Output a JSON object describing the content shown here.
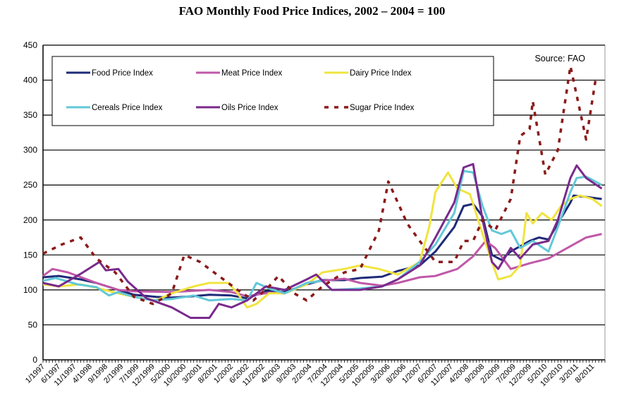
{
  "chart_data": {
    "type": "line",
    "title": "FAO Monthly Food Price Indices, 2002 – 2004 = 100",
    "annotation": "Source: FAO",
    "xlabel": "",
    "ylabel": "",
    "ylim": [
      0,
      450
    ],
    "yticks": [
      0,
      50,
      100,
      150,
      200,
      250,
      300,
      350,
      400,
      450
    ],
    "xrange": [
      "1997-01",
      "2011-11"
    ],
    "xtick_labels": [
      "1/1997",
      "6/1997",
      "11/1997",
      "4/1998",
      "9/1998",
      "2/1999",
      "7/1999",
      "12/1999",
      "5/2000",
      "10/2000",
      "3/2001",
      "8/2001",
      "1/2002",
      "6/2002",
      "11/2002",
      "4/2003",
      "9/2003",
      "2/2004",
      "7/2004",
      "12/2004",
      "5/2005",
      "10/2005",
      "3/2006",
      "8/2006",
      "1/2007",
      "6/2007",
      "11/2007",
      "4/2008",
      "9/2008",
      "2/2009",
      "7/2009",
      "12/2009",
      "5/2010",
      "10/2010",
      "3/2011",
      "8/2011"
    ],
    "grid": "horizontal",
    "legend": "top-left, inside plot",
    "series": [
      {
        "name": "Food Price Index",
        "color": "#1f2a78",
        "style": "solid",
        "points": [
          [
            "1997-01",
            118
          ],
          [
            "1997-06",
            120
          ],
          [
            "1998-01",
            115
          ],
          [
            "1998-06",
            110
          ],
          [
            "1999-01",
            100
          ],
          [
            "1999-06",
            93
          ],
          [
            "2000-01",
            90
          ],
          [
            "2000-06",
            89
          ],
          [
            "2001-01",
            91
          ],
          [
            "2001-06",
            93
          ],
          [
            "2002-01",
            92
          ],
          [
            "2002-06",
            88
          ],
          [
            "2002-12",
            98
          ],
          [
            "2003-06",
            97
          ],
          [
            "2004-01",
            108
          ],
          [
            "2004-06",
            114
          ],
          [
            "2005-01",
            114
          ],
          [
            "2005-06",
            117
          ],
          [
            "2006-01",
            119
          ],
          [
            "2006-06",
            127
          ],
          [
            "2007-01",
            135
          ],
          [
            "2007-06",
            155
          ],
          [
            "2007-12",
            190
          ],
          [
            "2008-03",
            220
          ],
          [
            "2008-06",
            223
          ],
          [
            "2008-09",
            205
          ],
          [
            "2008-12",
            150
          ],
          [
            "2009-03",
            143
          ],
          [
            "2009-06",
            155
          ],
          [
            "2009-12",
            170
          ],
          [
            "2010-03",
            175
          ],
          [
            "2010-06",
            172
          ],
          [
            "2010-09",
            195
          ],
          [
            "2011-01",
            225
          ],
          [
            "2011-02",
            235
          ],
          [
            "2011-06",
            233
          ],
          [
            "2011-11",
            230
          ]
        ]
      },
      {
        "name": "Meat Price Index",
        "color": "#c058a8",
        "style": "solid",
        "points": [
          [
            "1997-01",
            120
          ],
          [
            "1997-04",
            130
          ],
          [
            "1997-09",
            125
          ],
          [
            "1998-06",
            110
          ],
          [
            "1999-01",
            100
          ],
          [
            "1999-06",
            98
          ],
          [
            "2000-06",
            97
          ],
          [
            "2001-06",
            100
          ],
          [
            "2002-01",
            97
          ],
          [
            "2002-06",
            91
          ],
          [
            "2003-01",
            96
          ],
          [
            "2003-06",
            95
          ],
          [
            "2004-01",
            110
          ],
          [
            "2004-06",
            113
          ],
          [
            "2005-01",
            116
          ],
          [
            "2005-06",
            110
          ],
          [
            "2006-01",
            106
          ],
          [
            "2006-06",
            110
          ],
          [
            "2007-01",
            118
          ],
          [
            "2007-06",
            120
          ],
          [
            "2008-01",
            130
          ],
          [
            "2008-06",
            148
          ],
          [
            "2008-10",
            170
          ],
          [
            "2009-01",
            160
          ],
          [
            "2009-06",
            130
          ],
          [
            "2009-12",
            138
          ],
          [
            "2010-06",
            145
          ],
          [
            "2010-12",
            160
          ],
          [
            "2011-06",
            175
          ],
          [
            "2011-11",
            180
          ]
        ]
      },
      {
        "name": "Dairy Price Index",
        "color": "#f0e440",
        "style": "solid",
        "points": [
          [
            "1997-01",
            108
          ],
          [
            "1997-06",
            105
          ],
          [
            "1998-01",
            108
          ],
          [
            "1998-06",
            103
          ],
          [
            "1999-01",
            95
          ],
          [
            "1999-06",
            90
          ],
          [
            "2000-01",
            85
          ],
          [
            "2000-06",
            95
          ],
          [
            "2001-01",
            105
          ],
          [
            "2001-06",
            110
          ],
          [
            "2001-12",
            110
          ],
          [
            "2002-03",
            95
          ],
          [
            "2002-06",
            75
          ],
          [
            "2002-09",
            80
          ],
          [
            "2003-01",
            95
          ],
          [
            "2003-06",
            95
          ],
          [
            "2004-01",
            108
          ],
          [
            "2004-06",
            125
          ],
          [
            "2005-01",
            130
          ],
          [
            "2005-06",
            135
          ],
          [
            "2005-12",
            130
          ],
          [
            "2006-06",
            122
          ],
          [
            "2007-01",
            140
          ],
          [
            "2007-04",
            190
          ],
          [
            "2007-06",
            240
          ],
          [
            "2007-10",
            268
          ],
          [
            "2008-01",
            245
          ],
          [
            "2008-05",
            237
          ],
          [
            "2008-09",
            180
          ],
          [
            "2008-12",
            140
          ],
          [
            "2009-02",
            115
          ],
          [
            "2009-06",
            120
          ],
          [
            "2009-09",
            135
          ],
          [
            "2009-11",
            210
          ],
          [
            "2010-01",
            195
          ],
          [
            "2010-04",
            210
          ],
          [
            "2010-07",
            200
          ],
          [
            "2010-10",
            220
          ],
          [
            "2011-01",
            230
          ],
          [
            "2011-04",
            235
          ],
          [
            "2011-08",
            230
          ],
          [
            "2011-11",
            220
          ]
        ]
      },
      {
        "name": "Cereals Price Index",
        "color": "#62c8d8",
        "style": "solid",
        "points": [
          [
            "1997-01",
            113
          ],
          [
            "1997-05",
            117
          ],
          [
            "1997-12",
            108
          ],
          [
            "1998-06",
            104
          ],
          [
            "1998-10",
            92
          ],
          [
            "1999-01",
            97
          ],
          [
            "1999-06",
            90
          ],
          [
            "1999-12",
            85
          ],
          [
            "2000-06",
            87
          ],
          [
            "2001-01",
            92
          ],
          [
            "2001-06",
            85
          ],
          [
            "2002-01",
            87
          ],
          [
            "2002-06",
            85
          ],
          [
            "2002-09",
            110
          ],
          [
            "2003-01",
            102
          ],
          [
            "2003-06",
            95
          ],
          [
            "2004-01",
            110
          ],
          [
            "2004-06",
            113
          ],
          [
            "2004-09",
            100
          ],
          [
            "2005-06",
            102
          ],
          [
            "2006-01",
            105
          ],
          [
            "2006-06",
            115
          ],
          [
            "2007-01",
            140
          ],
          [
            "2007-06",
            165
          ],
          [
            "2007-12",
            210
          ],
          [
            "2008-03",
            270
          ],
          [
            "2008-06",
            268
          ],
          [
            "2008-09",
            220
          ],
          [
            "2008-12",
            185
          ],
          [
            "2009-03",
            180
          ],
          [
            "2009-06",
            185
          ],
          [
            "2009-09",
            160
          ],
          [
            "2010-01",
            170
          ],
          [
            "2010-06",
            155
          ],
          [
            "2010-09",
            190
          ],
          [
            "2011-01",
            240
          ],
          [
            "2011-03",
            260
          ],
          [
            "2011-06",
            262
          ],
          [
            "2011-09",
            255
          ],
          [
            "2011-11",
            250
          ]
        ]
      },
      {
        "name": "Oils Price Index",
        "color": "#7a2a8c",
        "style": "solid",
        "points": [
          [
            "1997-01",
            110
          ],
          [
            "1997-06",
            105
          ],
          [
            "1998-01",
            123
          ],
          [
            "1998-07",
            140
          ],
          [
            "1998-09",
            128
          ],
          [
            "1999-01",
            130
          ],
          [
            "1999-04",
            112
          ],
          [
            "1999-10",
            88
          ],
          [
            "2000-06",
            75
          ],
          [
            "2000-12",
            60
          ],
          [
            "2001-06",
            60
          ],
          [
            "2001-09",
            80
          ],
          [
            "2002-01",
            75
          ],
          [
            "2002-06",
            85
          ],
          [
            "2002-12",
            105
          ],
          [
            "2003-06",
            100
          ],
          [
            "2004-01",
            115
          ],
          [
            "2004-04",
            122
          ],
          [
            "2004-09",
            100
          ],
          [
            "2005-06",
            100
          ],
          [
            "2006-01",
            105
          ],
          [
            "2006-06",
            115
          ],
          [
            "2007-01",
            135
          ],
          [
            "2007-06",
            175
          ],
          [
            "2007-12",
            225
          ],
          [
            "2008-03",
            275
          ],
          [
            "2008-06",
            280
          ],
          [
            "2008-09",
            200
          ],
          [
            "2008-12",
            140
          ],
          [
            "2009-02",
            130
          ],
          [
            "2009-06",
            160
          ],
          [
            "2009-09",
            145
          ],
          [
            "2010-01",
            165
          ],
          [
            "2010-06",
            170
          ],
          [
            "2010-09",
            200
          ],
          [
            "2011-01",
            260
          ],
          [
            "2011-03",
            278
          ],
          [
            "2011-06",
            260
          ],
          [
            "2011-11",
            245
          ]
        ]
      },
      {
        "name": "Sugar Price Index",
        "color": "#8b1a1a",
        "style": "dashed",
        "points": [
          [
            "1997-01",
            152
          ],
          [
            "1997-07",
            165
          ],
          [
            "1998-01",
            175
          ],
          [
            "1998-06",
            145
          ],
          [
            "1998-12",
            125
          ],
          [
            "1999-06",
            90
          ],
          [
            "1999-12",
            80
          ],
          [
            "2000-06",
            95
          ],
          [
            "2000-10",
            150
          ],
          [
            "2001-03",
            140
          ],
          [
            "2001-09",
            120
          ],
          [
            "2002-03",
            100
          ],
          [
            "2002-08",
            85
          ],
          [
            "2003-01",
            105
          ],
          [
            "2003-04",
            120
          ],
          [
            "2003-09",
            95
          ],
          [
            "2004-01",
            85
          ],
          [
            "2004-06",
            105
          ],
          [
            "2005-01",
            125
          ],
          [
            "2005-06",
            130
          ],
          [
            "2005-12",
            185
          ],
          [
            "2006-03",
            255
          ],
          [
            "2006-09",
            195
          ],
          [
            "2007-01",
            170
          ],
          [
            "2007-06",
            140
          ],
          [
            "2007-12",
            140
          ],
          [
            "2008-03",
            170
          ],
          [
            "2008-06",
            170
          ],
          [
            "2008-09",
            200
          ],
          [
            "2009-01",
            185
          ],
          [
            "2009-06",
            230
          ],
          [
            "2009-09",
            320
          ],
          [
            "2009-12",
            330
          ],
          [
            "2010-01",
            370
          ],
          [
            "2010-05",
            265
          ],
          [
            "2010-09",
            300
          ],
          [
            "2011-01",
            420
          ],
          [
            "2011-06",
            315
          ],
          [
            "2011-09",
            400
          ]
        ]
      }
    ]
  }
}
